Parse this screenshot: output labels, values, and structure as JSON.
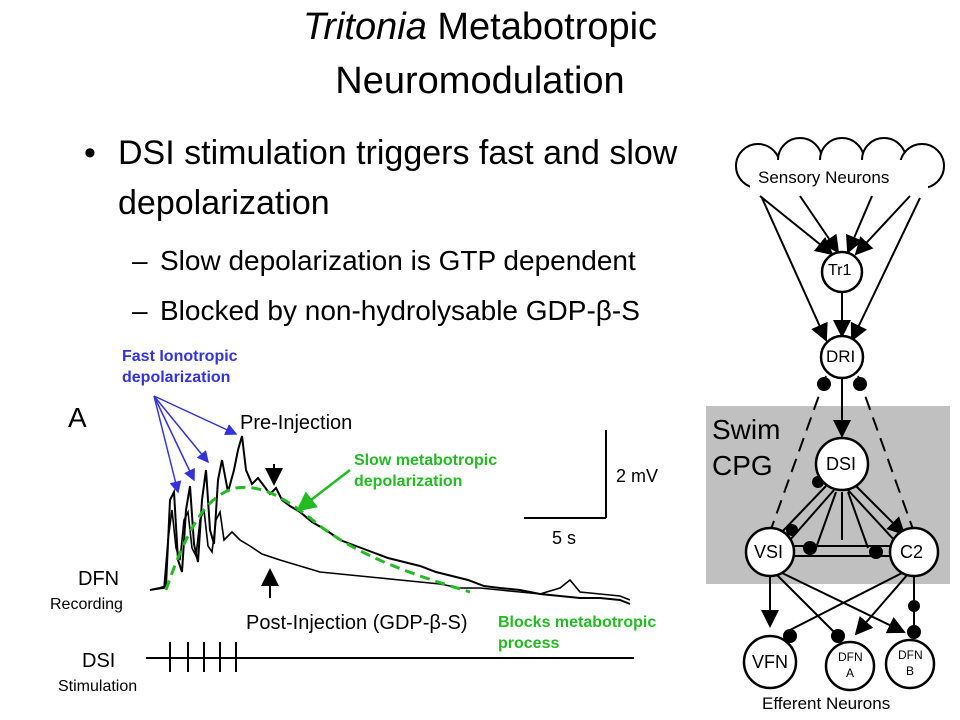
{
  "slide": {
    "title_italic": "Tritonia",
    "title_rest": " Metabotropic",
    "title_line2": "Neuromodulation",
    "bullet_dot": "•",
    "bullet_line1": "DSI stimulation triggers fast and slow",
    "bullet_line2": "depolarization",
    "sub_dash": "–",
    "sub1": "Slow depolarization is GTP dependent",
    "sub2": "Blocked by non-hydrolysable GDP-β-S"
  },
  "figure": {
    "panel_label": "A",
    "pre_injection": "Pre-Injection",
    "post_injection": "Post-Injection (GDP-β-S)",
    "dfn_label": "DFN",
    "dsi_label": "DSI",
    "scale_v": "2 mV",
    "scale_t": "5 s",
    "recording": "Recording",
    "stimulation": "Stimulation"
  },
  "annotations": {
    "fast_line1": "Fast Ionotropic",
    "fast_line2": "depolarization",
    "slow_line1": "Slow metabotropic",
    "slow_line2": "depolarization",
    "blocks_line1": "Blocks metabotropic",
    "blocks_line2": "process"
  },
  "circuit": {
    "sensory": "Sensory Neurons",
    "tr1": "Tr1",
    "dri": "DRI",
    "swim": "Swim",
    "cpg": "CPG",
    "dsi": "DSI",
    "vsi": "VSI",
    "c2": "C2",
    "vfn": "VFN",
    "dfn": "DFN",
    "dfn_a": "A",
    "dfn_b": "B",
    "efferent": "Efferent Neurons"
  },
  "colors": {
    "annotation_blue": "#3333dd",
    "annotation_green": "#22bb22",
    "cpg_box": "#c0c0c0"
  }
}
